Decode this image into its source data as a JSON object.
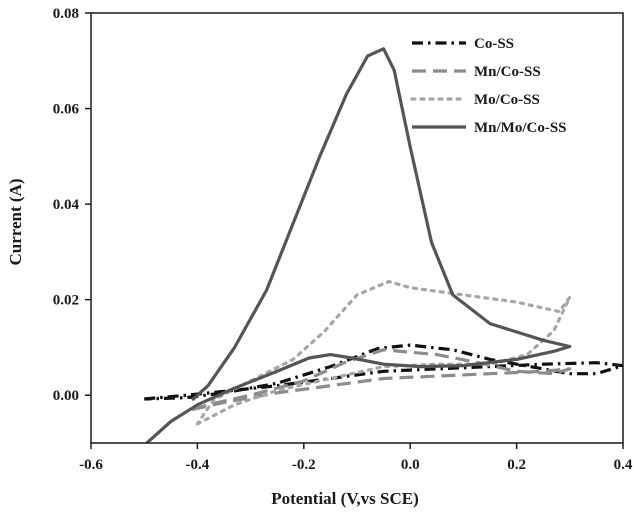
{
  "chart_data": {
    "type": "line",
    "xlabel": "Potential (V,vs SCE)",
    "ylabel": "Current (A)",
    "xlim": [
      -0.6,
      0.4
    ],
    "ylim": [
      -0.01,
      0.08
    ],
    "x_ticks": [
      -0.6,
      -0.4,
      -0.2,
      0.0,
      0.2,
      0.4
    ],
    "x_tick_labels": [
      "-0.6",
      "-0.4",
      "-0.2",
      "0.0",
      "0.2",
      "0.4"
    ],
    "y_ticks": [
      0.0,
      0.02,
      0.04,
      0.06,
      0.08
    ],
    "y_tick_labels": [
      "0.00",
      "0.02",
      "0.04",
      "0.06",
      "0.08"
    ],
    "legend_position": "top-right",
    "grid": false,
    "series": [
      {
        "name": "Co-SS",
        "color": "#111111",
        "style": "dash-dot",
        "points": [
          [
            -0.5,
            -0.0008
          ],
          [
            -0.42,
            0.0
          ],
          [
            -0.35,
            0.0008
          ],
          [
            -0.25,
            0.002
          ],
          [
            -0.15,
            0.0035
          ],
          [
            -0.05,
            0.005
          ],
          [
            0.05,
            0.0055
          ],
          [
            0.15,
            0.006
          ],
          [
            0.25,
            0.0065
          ],
          [
            0.35,
            0.0068
          ],
          [
            0.4,
            0.0062
          ],
          [
            0.35,
            0.0045
          ],
          [
            0.3,
            0.0045
          ],
          [
            0.25,
            0.0055
          ],
          [
            0.15,
            0.0075
          ],
          [
            0.08,
            0.0095
          ],
          [
            0.0,
            0.0105
          ],
          [
            -0.06,
            0.0098
          ],
          [
            -0.15,
            0.006
          ],
          [
            -0.25,
            0.0025
          ],
          [
            -0.35,
            0.0005
          ],
          [
            -0.42,
            -0.0005
          ],
          [
            -0.5,
            -0.0008
          ]
        ]
      },
      {
        "name": "Mn/Co-SS",
        "color": "#8c8c8c",
        "style": "dashed",
        "points": [
          [
            -0.41,
            -0.003
          ],
          [
            -0.35,
            -0.0015
          ],
          [
            -0.25,
            0.0005
          ],
          [
            -0.15,
            0.002
          ],
          [
            -0.05,
            0.0035
          ],
          [
            0.05,
            0.004
          ],
          [
            0.15,
            0.0045
          ],
          [
            0.25,
            0.005
          ],
          [
            0.3,
            0.0055
          ],
          [
            0.27,
            0.0045
          ],
          [
            0.2,
            0.005
          ],
          [
            0.12,
            0.007
          ],
          [
            0.05,
            0.0085
          ],
          [
            -0.05,
            0.0095
          ],
          [
            -0.12,
            0.007
          ],
          [
            -0.2,
            0.003
          ],
          [
            -0.3,
            0.0
          ],
          [
            -0.38,
            -0.002
          ],
          [
            -0.41,
            -0.003
          ]
        ]
      },
      {
        "name": "Mo/Co-SS",
        "color": "#a6a6a6",
        "style": "dotted",
        "points": [
          [
            -0.4,
            -0.006
          ],
          [
            -0.33,
            -0.002
          ],
          [
            -0.25,
            0.001
          ],
          [
            -0.15,
            0.0035
          ],
          [
            -0.05,
            0.006
          ],
          [
            0.05,
            0.0065
          ],
          [
            0.15,
            0.0065
          ],
          [
            0.22,
            0.0085
          ],
          [
            0.27,
            0.0135
          ],
          [
            0.3,
            0.0205
          ],
          [
            0.28,
            0.0175
          ],
          [
            0.2,
            0.0195
          ],
          [
            0.1,
            0.021
          ],
          [
            0.0,
            0.0225
          ],
          [
            -0.04,
            0.0238
          ],
          [
            -0.1,
            0.021
          ],
          [
            -0.16,
            0.0135
          ],
          [
            -0.22,
            0.0075
          ],
          [
            -0.3,
            0.003
          ],
          [
            -0.37,
            -0.001
          ],
          [
            -0.4,
            -0.006
          ]
        ]
      },
      {
        "name": "Mn/Mo/Co-SS",
        "color": "#555555",
        "style": "solid",
        "points": [
          [
            -0.5,
            -0.0105
          ],
          [
            -0.45,
            -0.0055
          ],
          [
            -0.4,
            -0.002
          ],
          [
            -0.33,
            0.0015
          ],
          [
            -0.25,
            0.005
          ],
          [
            -0.19,
            0.0078
          ],
          [
            -0.15,
            0.0085
          ],
          [
            -0.11,
            0.0078
          ],
          [
            -0.05,
            0.0065
          ],
          [
            0.02,
            0.006
          ],
          [
            0.1,
            0.0062
          ],
          [
            0.2,
            0.0075
          ],
          [
            0.27,
            0.0092
          ],
          [
            0.3,
            0.0102
          ],
          [
            0.25,
            0.0115
          ],
          [
            0.15,
            0.015
          ],
          [
            0.08,
            0.021
          ],
          [
            0.04,
            0.032
          ],
          [
            0.0,
            0.052
          ],
          [
            -0.03,
            0.068
          ],
          [
            -0.05,
            0.0725
          ],
          [
            -0.08,
            0.071
          ],
          [
            -0.12,
            0.063
          ],
          [
            -0.17,
            0.05
          ],
          [
            -0.22,
            0.036
          ],
          [
            -0.27,
            0.022
          ],
          [
            -0.33,
            0.01
          ],
          [
            -0.38,
            0.002
          ],
          [
            -0.41,
            -0.001
          ]
        ]
      }
    ]
  }
}
